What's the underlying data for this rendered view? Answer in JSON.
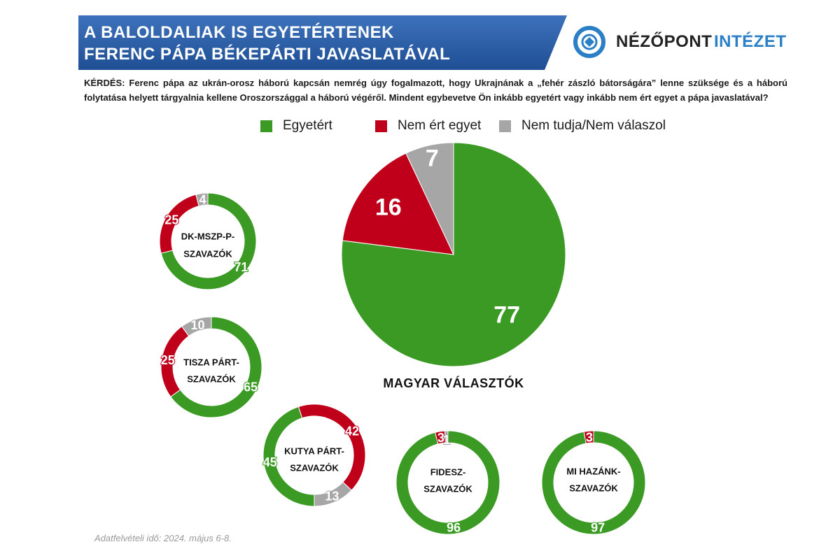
{
  "header": {
    "title_line1": "A BALOLDALIAK IS EGYETÉRTENEK",
    "title_line2": "FERENC PÁPA BÉKEPÁRTI JAVASLATÁVAL",
    "banner_color": "#2c5fa6",
    "logo_part1": "NÉZŐPONT",
    "logo_part2": "INTÉZET",
    "logo_icon": "nezopont-logo-icon",
    "logo_color1": "#222222",
    "logo_color2": "#2a7fc7"
  },
  "question": "KÉRDÉS: Ferenc pápa az ukrán-orosz háború kapcsán nemrég úgy fogalmazott, hogy Ukrajnának a „fehér zászló bátorságára” lenne szüksége és a háború folytatása helyett tárgyalnia kellene Oroszországgal a háború végéről. Mindent egybevetve Ön inkább egyetért vagy inkább nem ért egyet a pápa javaslatával?",
  "legend": [
    {
      "label": "Egyetért",
      "color": "#3a9a23"
    },
    {
      "label": "Nem ért egyet",
      "color": "#c0001a"
    },
    {
      "label": "Nem tudja/Nem válaszol",
      "color": "#a6a6a6"
    }
  ],
  "chart_data": [
    {
      "type": "pie",
      "title": "MAGYAR VÁLASZTÓK",
      "categories": [
        "Egyetért",
        "Nem ért egyet",
        "Nem tudja/Nem válaszol"
      ],
      "values": [
        77,
        16,
        7
      ]
    },
    {
      "type": "donut",
      "title": "DK-MSZP-P-SZAVAZÓK",
      "title_lines": [
        "DK-MSZP-P-",
        "SZAVAZÓK"
      ],
      "categories": [
        "Egyetért",
        "Nem ért egyet",
        "Nem tudja/Nem válaszol"
      ],
      "values": [
        71,
        25,
        4
      ]
    },
    {
      "type": "donut",
      "title": "TISZA PÁRT-SZAVAZÓK",
      "title_lines": [
        "TISZA PÁRT-",
        "SZAVAZÓK"
      ],
      "categories": [
        "Egyetért",
        "Nem ért egyet",
        "Nem tudja/Nem válaszol"
      ],
      "values": [
        65,
        25,
        10
      ]
    },
    {
      "type": "donut",
      "title": "KUTYA PÁRT-SZAVAZÓK",
      "title_lines": [
        "KUTYA PÁRT-",
        "SZAVAZÓK"
      ],
      "categories": [
        "Egyetért",
        "Nem ért egyet",
        "Nem tudja/Nem válaszol"
      ],
      "values": [
        45,
        42,
        13
      ]
    },
    {
      "type": "donut",
      "title": "FIDESZ-SZAVAZÓK",
      "title_lines": [
        "FIDESZ-",
        "SZAVAZÓK"
      ],
      "categories": [
        "Egyetért",
        "Nem ért egyet",
        "Nem tudja/Nem válaszol"
      ],
      "values": [
        96,
        3,
        1
      ]
    },
    {
      "type": "donut",
      "title": "MI HAZÁNK-SZAVAZÓK",
      "title_lines": [
        "MI HAZÁNK-",
        "SZAVAZÓK"
      ],
      "categories": [
        "Egyetért",
        "Nem ért egyet",
        "Nem tudja/Nem válaszol"
      ],
      "values": [
        97,
        3,
        0
      ]
    }
  ],
  "footnote": "Adatfelvételi idő: 2024. május 6-8."
}
